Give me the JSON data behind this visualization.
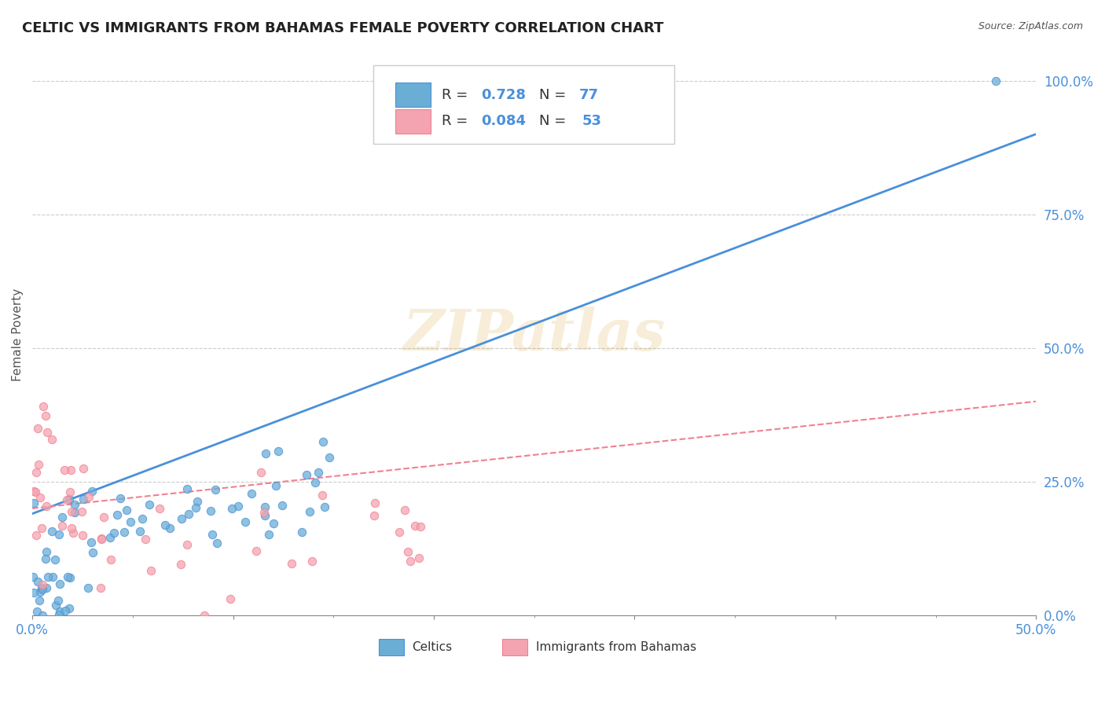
{
  "title": "CELTIC VS IMMIGRANTS FROM BAHAMAS FEMALE POVERTY CORRELATION CHART",
  "source": "Source: ZipAtlas.com",
  "ylabel": "Female Poverty",
  "xlim": [
    0.0,
    0.5
  ],
  "ylim": [
    0.0,
    1.05
  ],
  "ytick_labels": [
    "0.0%",
    "25.0%",
    "50.0%",
    "75.0%",
    "100.0%"
  ],
  "ytick_values": [
    0.0,
    0.25,
    0.5,
    0.75,
    1.0
  ],
  "celtics_color": "#6aaed6",
  "immigrants_color": "#f4a4b0",
  "celtics_line_color": "#4a90d9",
  "immigrants_line_color": "#f28090",
  "R_celtics": 0.728,
  "N_celtics": 77,
  "R_immigrants": 0.084,
  "N_immigrants": 53,
  "legend_label_celtics": "Celtics",
  "legend_label_immigrants": "Immigrants from Bahamas",
  "watermark": "ZIPatlas",
  "background_color": "#ffffff",
  "grid_color": "#cccccc"
}
